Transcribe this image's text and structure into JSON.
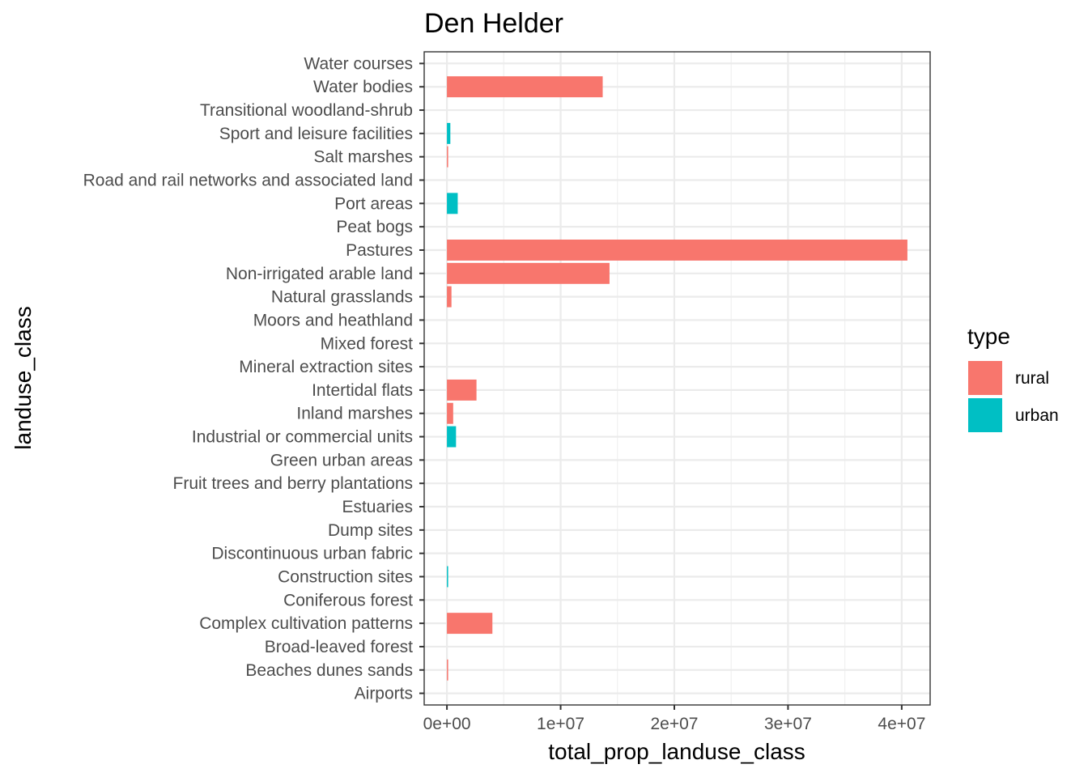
{
  "chart_data": {
    "type": "bar",
    "orientation": "horizontal",
    "title": "Den Helder",
    "xlabel": "total_prop_landuse_class",
    "ylabel": "landuse_class",
    "xlim": [
      -2000000,
      42500000
    ],
    "x_ticks": [
      0,
      10000000,
      20000000,
      30000000,
      40000000
    ],
    "x_tick_labels": [
      "0e+00",
      "1e+07",
      "2e+07",
      "3e+07",
      "4e+07"
    ],
    "grid": true,
    "legend_position": "right",
    "legend": {
      "title": "type",
      "entries": [
        {
          "name": "rural",
          "color": "#F8766D"
        },
        {
          "name": "urban",
          "color": "#00BFC4"
        }
      ]
    },
    "categories": [
      "Water courses",
      "Water bodies",
      "Transitional woodland-shrub",
      "Sport and leisure facilities",
      "Salt marshes",
      "Road and rail networks and associated land",
      "Port areas",
      "Peat bogs",
      "Pastures",
      "Non-irrigated arable land",
      "Natural grasslands",
      "Moors and heathland",
      "Mixed forest",
      "Mineral extraction sites",
      "Intertidal flats",
      "Inland marshes",
      "Industrial or commercial units",
      "Green urban areas",
      "Fruit trees and berry plantations",
      "Estuaries",
      "Dump sites",
      "Discontinuous urban fabric",
      "Construction sites",
      "Coniferous forest",
      "Complex cultivation patterns",
      "Broad-leaved forest",
      "Beaches dunes sands",
      "Airports"
    ],
    "bars": [
      {
        "category": "Water bodies",
        "type": "rural",
        "value": 13700000
      },
      {
        "category": "Sport and leisure facilities",
        "type": "urban",
        "value": 300000
      },
      {
        "category": "Salt marshes",
        "type": "rural",
        "value": 80000
      },
      {
        "category": "Port areas",
        "type": "urban",
        "value": 950000
      },
      {
        "category": "Pastures",
        "type": "rural",
        "value": 40500000
      },
      {
        "category": "Non-irrigated arable land",
        "type": "rural",
        "value": 14300000
      },
      {
        "category": "Natural grasslands",
        "type": "rural",
        "value": 400000
      },
      {
        "category": "Intertidal flats",
        "type": "rural",
        "value": 2600000
      },
      {
        "category": "Inland marshes",
        "type": "rural",
        "value": 550000
      },
      {
        "category": "Industrial or commercial units",
        "type": "urban",
        "value": 800000
      },
      {
        "category": "Construction sites",
        "type": "urban",
        "value": 80000
      },
      {
        "category": "Complex cultivation patterns",
        "type": "rural",
        "value": 4000000
      },
      {
        "category": "Beaches dunes sands",
        "type": "rural",
        "value": 80000
      }
    ]
  }
}
